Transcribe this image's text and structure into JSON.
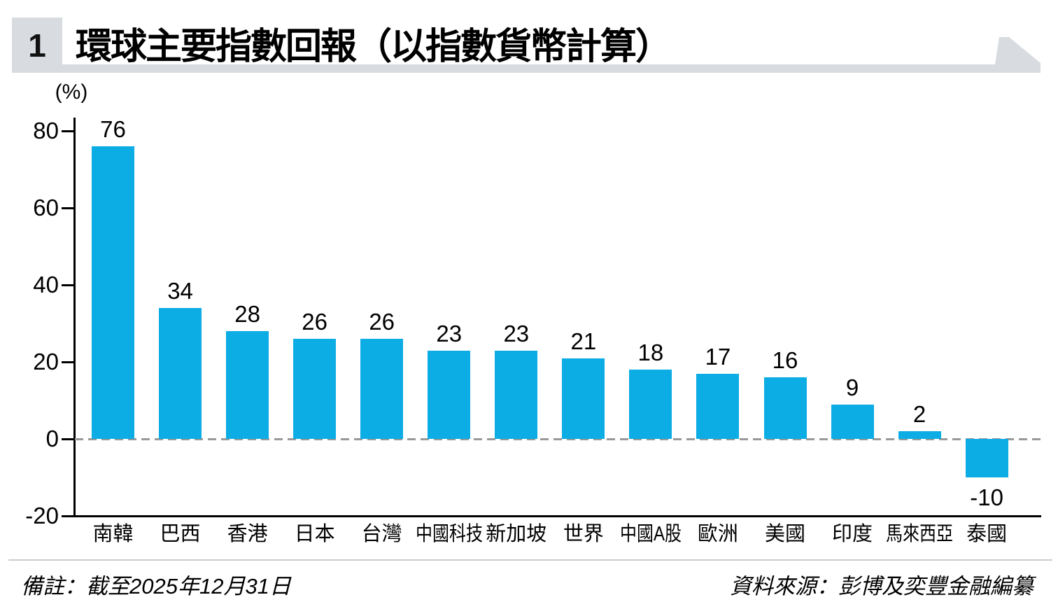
{
  "header": {
    "figure_number": "1",
    "title": "環球主要指數回報（以指數貨幣計算）"
  },
  "chart_data": {
    "type": "bar",
    "title": "環球主要指數回報（以指數貨幣計算）",
    "unit_label": "(%)",
    "categories": [
      "南韓",
      "巴西",
      "香港",
      "日本",
      "台灣",
      "中國科技",
      "新加坡",
      "世界",
      "中國A股",
      "歐洲",
      "美國",
      "印度",
      "馬來西亞",
      "泰國"
    ],
    "values": [
      76,
      34,
      28,
      26,
      26,
      23,
      23,
      21,
      18,
      17,
      16,
      9,
      2,
      -10
    ],
    "yticks": [
      80,
      60,
      40,
      20,
      0,
      -20
    ],
    "ylim": [
      -20,
      88
    ],
    "grid": "off",
    "legend": "none",
    "zero_line": "dashed-gray",
    "value_labels": "outside-bar-ends",
    "bar_color": "#0CACE4"
  },
  "footer": {
    "note": "備註：截至2025年12月31日",
    "source": "資料來源：彭博及奕豐金融編纂"
  },
  "colors": {
    "bar": "#0CACE4",
    "ribbon": "#D8DCE0",
    "dashed_zero_line": "#999999",
    "axis": "#000000",
    "footer_rule": "#CCCCCC",
    "text": "#000000"
  }
}
